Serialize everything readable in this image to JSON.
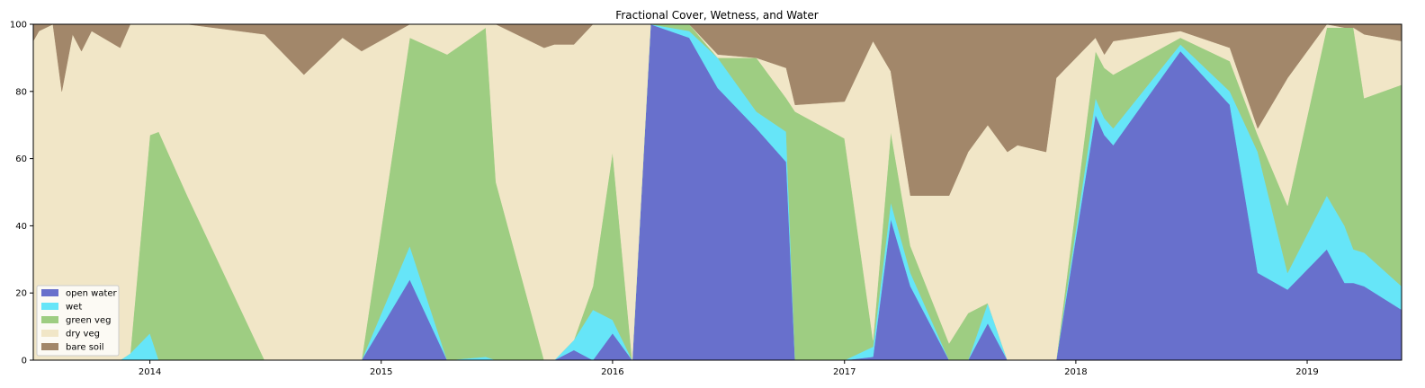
{
  "chart_data": {
    "type": "area",
    "title": "Fractional Cover, Wetness, and Water",
    "xlabel": "",
    "ylabel": "",
    "ylim": [
      0,
      100
    ],
    "xlim": [
      "2013-07-01",
      "2019-05-30"
    ],
    "stacked": true,
    "grid": false,
    "legend_position": "lower-left",
    "x_tick_labels": [
      "2014",
      "2015",
      "2016",
      "2017",
      "2018",
      "2019"
    ],
    "y_tick_labels": [
      "0",
      "20",
      "40",
      "60",
      "80",
      "100"
    ],
    "x": [
      "2013-07-01",
      "2013-07-10",
      "2013-08-01",
      "2013-08-15",
      "2013-09-01",
      "2013-09-15",
      "2013-10-01",
      "2013-11-15",
      "2013-12-01",
      "2014-01-01",
      "2014-01-15",
      "2014-03-01",
      "2014-07-01",
      "2014-09-01",
      "2014-11-01",
      "2014-12-01",
      "2015-02-15",
      "2015-04-15",
      "2015-06-15",
      "2015-07-01",
      "2015-09-15",
      "2015-10-01",
      "2015-11-01",
      "2015-12-01",
      "2016-01-01",
      "2016-02-01",
      "2016-03-01",
      "2016-05-01",
      "2016-06-15",
      "2016-08-15",
      "2016-10-01",
      "2016-10-15",
      "2017-01-01",
      "2017-02-15",
      "2017-03-15",
      "2017-04-15",
      "2017-06-15",
      "2017-07-15",
      "2017-08-15",
      "2017-09-15",
      "2017-10-01",
      "2017-11-15",
      "2017-12-01",
      "2018-02-01",
      "2018-02-15",
      "2018-03-01",
      "2018-06-15",
      "2018-09-01",
      "2018-10-15",
      "2018-12-01",
      "2019-02-01",
      "2019-03-01",
      "2019-03-15",
      "2019-04-01",
      "2019-05-30"
    ],
    "series": [
      {
        "name": "open water",
        "color": "#6870cc",
        "values": [
          0,
          0,
          0,
          0,
          0,
          0,
          0,
          0,
          0,
          0,
          0,
          0,
          0,
          0,
          0,
          0,
          24,
          0,
          0,
          0,
          0,
          0,
          3,
          0,
          8,
          0,
          100,
          96,
          81,
          69,
          59,
          0,
          0,
          1,
          42,
          22,
          0,
          0,
          11,
          0,
          0,
          0,
          0,
          73,
          67,
          64,
          92,
          76,
          26,
          21,
          33,
          23,
          23,
          22,
          15
        ]
      },
      {
        "name": "wet",
        "color": "#66e5f8",
        "values": [
          0,
          0,
          0,
          0,
          0,
          0,
          0,
          0,
          2,
          8,
          0,
          0,
          0,
          0,
          0,
          0,
          10,
          0,
          1,
          0,
          0,
          0,
          3,
          15,
          4,
          0,
          0,
          2,
          9,
          5,
          9,
          0,
          0,
          3,
          5,
          4,
          0,
          0,
          6,
          0,
          0,
          0,
          0,
          5,
          5,
          5,
          2,
          4,
          36,
          5,
          16,
          17,
          10,
          10,
          7
        ]
      },
      {
        "name": "green veg",
        "color": "#9ecd82",
        "values": [
          0,
          0,
          0,
          0,
          0,
          0,
          0,
          0,
          0,
          59,
          68,
          49,
          0,
          0,
          0,
          0,
          62,
          91,
          98,
          53,
          0,
          0,
          0,
          7,
          50,
          0,
          0,
          2,
          0,
          16,
          10,
          74,
          66,
          2,
          21,
          8,
          5,
          14,
          0,
          0,
          0,
          0,
          0,
          14,
          15,
          16,
          2,
          9,
          5,
          20,
          50,
          59,
          66,
          46,
          60
        ]
      },
      {
        "name": "dry veg",
        "color": "#f1e6c7",
        "values": [
          95,
          98,
          100,
          80,
          97,
          92,
          98,
          93,
          98,
          33,
          32,
          51,
          97,
          85,
          96,
          92,
          4,
          9,
          1,
          47,
          93,
          94,
          88,
          78,
          38,
          100,
          0,
          0,
          1,
          0,
          9,
          2,
          11,
          89,
          18,
          15,
          44,
          48,
          53,
          62,
          64,
          62,
          84,
          4,
          4,
          10,
          2,
          4,
          2,
          38,
          1,
          0,
          0,
          19,
          13
        ]
      },
      {
        "name": "bare soil",
        "color": "#a2876a",
        "values": [
          5,
          2,
          0,
          20,
          3,
          8,
          2,
          7,
          0,
          0,
          0,
          0,
          3,
          15,
          4,
          8,
          0,
          0,
          0,
          0,
          7,
          6,
          6,
          0,
          0,
          0,
          0,
          0,
          9,
          10,
          13,
          24,
          23,
          5,
          14,
          51,
          51,
          38,
          30,
          38,
          36,
          38,
          16,
          4,
          9,
          5,
          2,
          7,
          31,
          16,
          0,
          1,
          1,
          3,
          5
        ]
      }
    ]
  }
}
